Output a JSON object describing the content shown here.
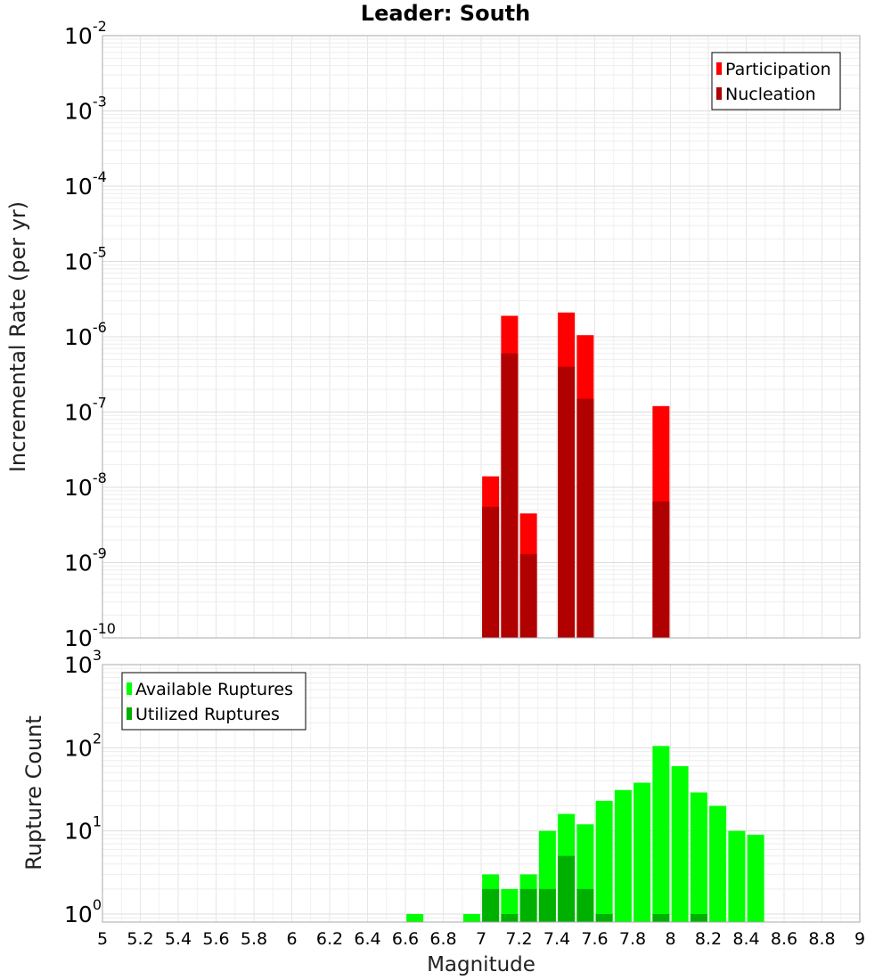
{
  "chart_data": [
    {
      "type": "bar",
      "title": "Leader: South",
      "ylabel": "Incremental Rate (per yr)",
      "xlabel": "",
      "yscale": "log",
      "ylim": [
        1e-10,
        0.01
      ],
      "xlim": [
        5,
        9
      ],
      "grid": true,
      "legend": "top-right",
      "series": [
        {
          "name": "Participation",
          "color": "#ff0000",
          "x": [
            7.05,
            7.15,
            7.25,
            7.45,
            7.55,
            7.95
          ],
          "values": [
            1.4e-08,
            1.9e-06,
            4.5e-09,
            2.1e-06,
            1.05e-06,
            1.2e-07
          ]
        },
        {
          "name": "Nucleation",
          "color": "#b00000",
          "x": [
            7.05,
            7.15,
            7.25,
            7.45,
            7.55,
            7.95
          ],
          "values": [
            5.5e-09,
            6e-07,
            1.3e-09,
            4e-07,
            1.5e-07,
            6.5e-09
          ]
        }
      ]
    },
    {
      "type": "bar",
      "title": "",
      "ylabel": "Rupture Count",
      "xlabel": "Magnitude",
      "yscale": "log",
      "ylim": [
        0.8,
        1000
      ],
      "xlim": [
        5,
        9
      ],
      "grid": true,
      "legend": "top-left",
      "series": [
        {
          "name": "Available Ruptures",
          "color": "#00ff00",
          "x": [
            6.65,
            6.95,
            7.05,
            7.15,
            7.25,
            7.35,
            7.45,
            7.55,
            7.65,
            7.75,
            7.85,
            7.95,
            8.05,
            8.15,
            8.25,
            8.35,
            8.45
          ],
          "values": [
            1,
            1,
            3,
            2,
            3,
            10,
            16,
            12,
            23,
            31,
            38,
            105,
            60,
            29,
            20,
            10,
            9
          ]
        },
        {
          "name": "Utilized Ruptures",
          "color": "#00b000",
          "x": [
            7.05,
            7.15,
            7.25,
            7.35,
            7.45,
            7.55,
            7.65,
            7.95,
            8.15
          ],
          "values": [
            2,
            1,
            2,
            2,
            5,
            2,
            1,
            1,
            1
          ]
        }
      ]
    }
  ],
  "x_ticks": [
    "5",
    "5.2",
    "5.4",
    "5.6",
    "5.8",
    "6",
    "6.2",
    "6.4",
    "6.6",
    "6.8",
    "7",
    "7.2",
    "7.4",
    "7.6",
    "7.8",
    "8",
    "8.2",
    "8.4",
    "8.6",
    "8.8",
    "9"
  ],
  "top_y_ticks": [
    {
      "base": "10",
      "exp": "-10"
    },
    {
      "base": "10",
      "exp": "-9"
    },
    {
      "base": "10",
      "exp": "-8"
    },
    {
      "base": "10",
      "exp": "-7"
    },
    {
      "base": "10",
      "exp": "-6"
    },
    {
      "base": "10",
      "exp": "-5"
    },
    {
      "base": "10",
      "exp": "-4"
    },
    {
      "base": "10",
      "exp": "-3"
    },
    {
      "base": "10",
      "exp": "-2"
    }
  ],
  "bottom_y_ticks": [
    {
      "base": "10",
      "exp": "0"
    },
    {
      "base": "10",
      "exp": "1"
    },
    {
      "base": "10",
      "exp": "2"
    },
    {
      "base": "10",
      "exp": "3"
    }
  ]
}
